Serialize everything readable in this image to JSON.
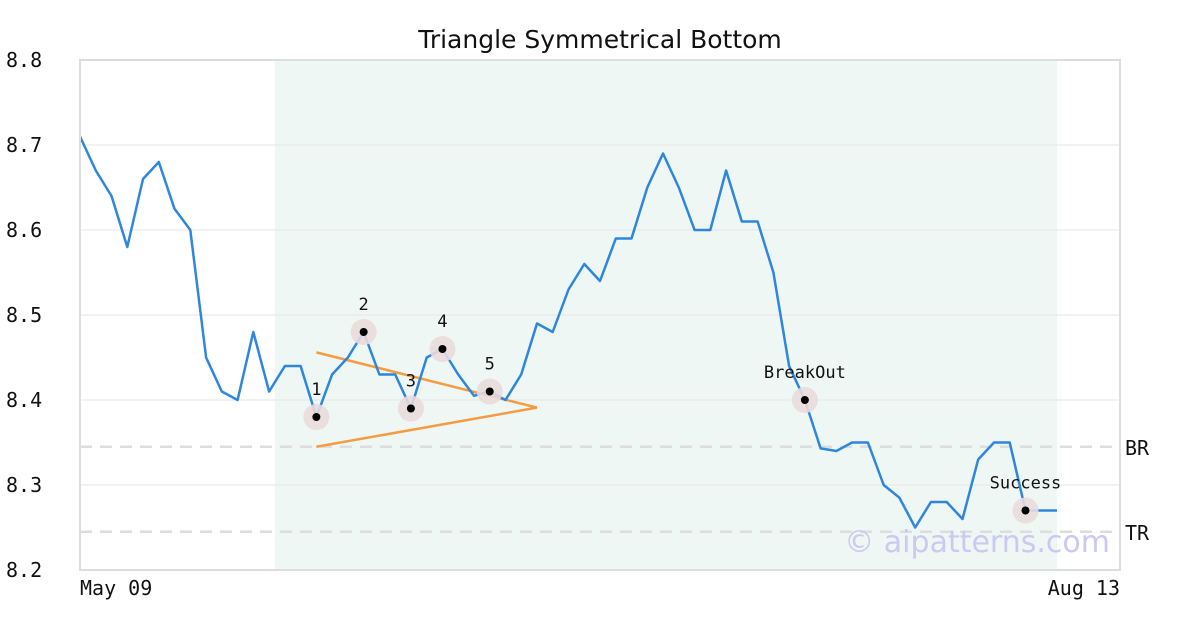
{
  "chart_data": {
    "type": "line",
    "title": "Triangle Symmetrical Bottom",
    "xlabel": "",
    "ylabel": "",
    "ylim": [
      8.2,
      8.8
    ],
    "y_ticks": [
      "8.2",
      "8.3",
      "8.4",
      "8.5",
      "8.6",
      "8.7",
      "8.8"
    ],
    "x_ticks": [
      "May 09",
      "Aug 13"
    ],
    "grid": "horizontal",
    "series": [
      {
        "color": "#2e86de",
        "values": [
          8.71,
          8.67,
          8.64,
          8.58,
          8.66,
          8.68,
          8.625,
          8.6,
          8.45,
          8.41,
          8.4,
          8.48,
          8.41,
          8.44,
          8.44,
          8.38,
          8.43,
          8.45,
          8.48,
          8.43,
          8.43,
          8.39,
          8.45,
          8.46,
          8.43,
          8.405,
          8.41,
          8.4,
          8.43,
          8.49,
          8.48,
          8.53,
          8.56,
          8.54,
          8.59,
          8.59,
          8.65,
          8.69,
          8.65,
          8.6,
          8.6,
          8.67,
          8.61,
          8.61,
          8.55,
          8.44,
          8.4,
          8.343,
          8.34,
          8.35,
          8.35,
          8.3,
          8.285,
          8.25,
          8.28,
          8.28,
          8.26,
          8.33,
          8.35,
          8.35,
          8.27,
          8.27,
          8.27
        ]
      }
    ],
    "pattern_region": {
      "start_index": 13,
      "end_index": 62
    },
    "pattern_points": [
      {
        "label": "1",
        "index": 15,
        "value": 8.38
      },
      {
        "label": "2",
        "index": 18,
        "value": 8.48
      },
      {
        "label": "3",
        "index": 21,
        "value": 8.39
      },
      {
        "label": "4",
        "index": 23,
        "value": 8.46
      },
      {
        "label": "5",
        "index": 26,
        "value": 8.41
      },
      {
        "label": "BreakOut",
        "index": 46,
        "value": 8.4
      },
      {
        "label": "Success",
        "index": 60,
        "value": 8.27
      }
    ],
    "triangle_lines": {
      "color": "#f59b42",
      "upper": {
        "from_index": 15,
        "from_value": 8.456,
        "to_index": 29,
        "to_value": 8.391
      },
      "lower": {
        "from_index": 15,
        "from_value": 8.345,
        "to_index": 29,
        "to_value": 8.391
      }
    },
    "levels": [
      {
        "label": "BR",
        "value": 8.345
      },
      {
        "label": "TR",
        "value": 8.245
      }
    ],
    "watermark": "© aipatterns.com"
  }
}
